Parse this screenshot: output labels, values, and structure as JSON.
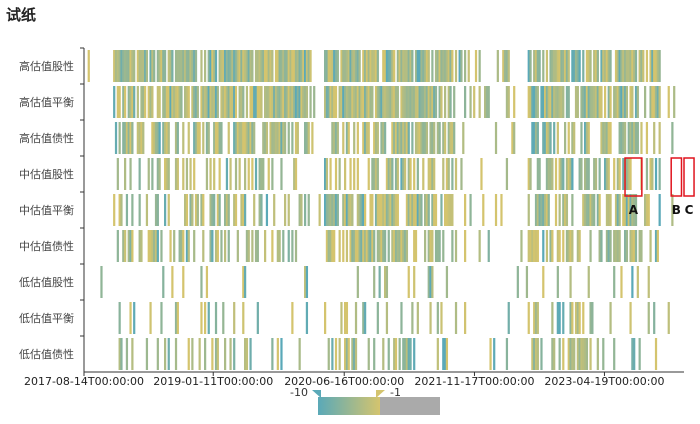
{
  "chart_data": {
    "type": "heatmap",
    "title": "试纸",
    "rows": [
      "高估值股性",
      "高估值平衡",
      "高估值债性",
      "中估值股性",
      "中估值平衡",
      "中估值债性",
      "低估值股性",
      "低估值平衡",
      "低估值债性"
    ],
    "x_ticks": [
      "2017-08-14T00:00:00",
      "2019-01-11T00:00:00",
      "2020-06-16T00:00:00",
      "2021-11-17T00:00:00",
      "2023-04-19T00:00:00"
    ],
    "x_range": [
      "2017-08-14",
      "2024-03-01"
    ],
    "color_scale": {
      "min": -10,
      "max": -1,
      "low_color": "#5aa9b8",
      "high_color": "#d4c46e",
      "out_of_range_color": "#aaaaaa"
    },
    "legend": {
      "min_label": "-10",
      "max_label": "-1"
    },
    "annotations": [
      {
        "label": "A",
        "date_start": "2023-07-10",
        "date_end": "2023-09-15",
        "row": "中估值股性"
      },
      {
        "label": "B",
        "date_start": "2024-01-10",
        "date_end": "2024-02-20",
        "row": "中估值股性"
      },
      {
        "label": "C",
        "date_start": "2024-03-01",
        "date_end": "2024-04-10",
        "row": "中估值股性"
      }
    ],
    "density": {
      "高估值股性": [
        [
          0.05,
          0.38,
          0.9
        ],
        [
          0.4,
          0.62,
          0.85
        ],
        [
          0.62,
          0.72,
          0.35
        ],
        [
          0.74,
          0.86,
          0.8
        ],
        [
          0.86,
          0.96,
          0.75
        ]
      ],
      "高估值平衡": [
        [
          0.05,
          0.38,
          0.85
        ],
        [
          0.4,
          0.62,
          0.9
        ],
        [
          0.62,
          0.72,
          0.3
        ],
        [
          0.74,
          0.86,
          0.75
        ],
        [
          0.86,
          0.96,
          0.7
        ]
      ],
      "高估值债性": [
        [
          0.05,
          0.28,
          0.6
        ],
        [
          0.28,
          0.38,
          0.7
        ],
        [
          0.4,
          0.62,
          0.8
        ],
        [
          0.62,
          0.72,
          0.25
        ],
        [
          0.74,
          0.86,
          0.6
        ],
        [
          0.86,
          0.96,
          0.55
        ]
      ],
      "中估值股性": [
        [
          0.05,
          0.28,
          0.35
        ],
        [
          0.28,
          0.38,
          0.3
        ],
        [
          0.4,
          0.62,
          0.65
        ],
        [
          0.62,
          0.72,
          0.15
        ],
        [
          0.74,
          0.86,
          0.55
        ],
        [
          0.86,
          0.96,
          0.5
        ]
      ],
      "中估值平衡": [
        [
          0.05,
          0.28,
          0.4
        ],
        [
          0.28,
          0.38,
          0.35
        ],
        [
          0.4,
          0.62,
          0.75
        ],
        [
          0.62,
          0.72,
          0.12
        ],
        [
          0.74,
          0.86,
          0.5
        ],
        [
          0.86,
          0.96,
          0.6
        ]
      ],
      "中估值债性": [
        [
          0.05,
          0.28,
          0.45
        ],
        [
          0.28,
          0.38,
          0.3
        ],
        [
          0.4,
          0.62,
          0.7
        ],
        [
          0.62,
          0.72,
          0.12
        ],
        [
          0.74,
          0.86,
          0.5
        ],
        [
          0.86,
          0.96,
          0.6
        ]
      ],
      "低估值股性": [
        [
          0.05,
          0.28,
          0.08
        ],
        [
          0.28,
          0.38,
          0.08
        ],
        [
          0.4,
          0.62,
          0.15
        ],
        [
          0.62,
          0.72,
          0.05
        ],
        [
          0.74,
          0.86,
          0.12
        ],
        [
          0.86,
          0.96,
          0.15
        ]
      ],
      "低估值平衡": [
        [
          0.05,
          0.28,
          0.2
        ],
        [
          0.28,
          0.38,
          0.15
        ],
        [
          0.4,
          0.62,
          0.3
        ],
        [
          0.62,
          0.72,
          0.08
        ],
        [
          0.74,
          0.86,
          0.3
        ],
        [
          0.86,
          0.96,
          0.25
        ]
      ],
      "低估值债性": [
        [
          0.05,
          0.28,
          0.25
        ],
        [
          0.28,
          0.38,
          0.15
        ],
        [
          0.4,
          0.62,
          0.3
        ],
        [
          0.62,
          0.72,
          0.08
        ],
        [
          0.74,
          0.86,
          0.3
        ],
        [
          0.86,
          0.96,
          0.3
        ]
      ]
    }
  }
}
